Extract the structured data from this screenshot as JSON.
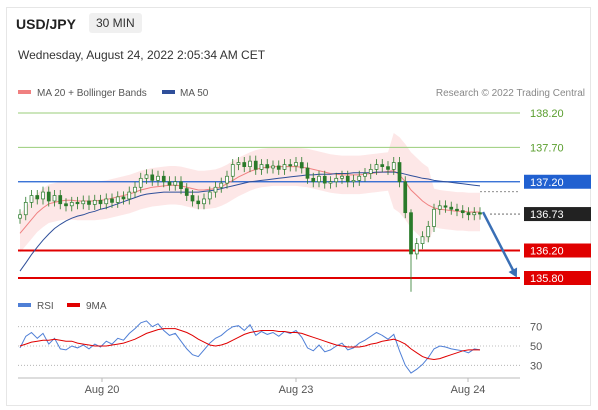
{
  "header": {
    "pair": "USD/JPY",
    "timeframe": "30 MIN",
    "datetime": "Wednesday, August 24, 2022 2:05:34 AM CET"
  },
  "legend": {
    "ma20_label": "MA 20 + Bollinger Bands",
    "ma50_label": "MA 50",
    "copyright": "Research © 2022 Trading Central",
    "rsi_label": "RSI",
    "ma9_label": "9MA"
  },
  "colors": {
    "ma20": "#f08080",
    "bollinger_fill": "#fde3e3",
    "ma50": "#2f4f9a",
    "support": "#e00000",
    "resistance": "#9acd7a",
    "pivot": "#2060d0",
    "last_price": "#222222",
    "arrow": "#3a6fb5",
    "candle": "#2a7a2a",
    "rsi": "#4f7fd6"
  },
  "chart_data": [
    {
      "type": "candlestick",
      "title": "USD/JPY 30 MIN",
      "x_tick_labels": [
        "Aug 20",
        "Aug 23",
        "Aug 24"
      ],
      "ylim": [
        135.58,
        138.36
      ],
      "last_price": 136.73,
      "levels": [
        {
          "value": 138.2,
          "label": "138.20",
          "kind": "resistance"
        },
        {
          "value": 137.7,
          "label": "137.70",
          "kind": "resistance"
        },
        {
          "value": 137.2,
          "label": "137.20",
          "kind": "pivot"
        },
        {
          "value": 136.2,
          "label": "136.20",
          "kind": "support"
        },
        {
          "value": 135.8,
          "label": "135.80",
          "kind": "support"
        }
      ],
      "close": [
        136.72,
        136.9,
        137.0,
        136.95,
        137.05,
        136.92,
        137.0,
        136.88,
        136.85,
        136.9,
        136.88,
        136.92,
        136.87,
        136.93,
        136.88,
        136.95,
        136.9,
        136.98,
        136.95,
        137.05,
        137.12,
        137.25,
        137.3,
        137.22,
        137.28,
        137.2,
        137.15,
        137.2,
        137.1,
        137.0,
        136.92,
        136.88,
        136.95,
        137.05,
        137.12,
        137.18,
        137.28,
        137.45,
        137.48,
        137.42,
        137.5,
        137.38,
        137.45,
        137.4,
        137.43,
        137.38,
        137.45,
        137.43,
        137.48,
        137.4,
        137.25,
        137.2,
        137.28,
        137.18,
        137.2,
        137.25,
        137.28,
        137.2,
        137.22,
        137.28,
        137.32,
        137.38,
        137.45,
        137.42,
        137.38,
        137.48,
        137.2,
        136.75,
        136.15,
        136.3,
        136.4,
        136.55,
        136.8,
        136.85,
        136.83,
        136.8,
        136.78,
        136.75,
        136.72,
        136.75,
        136.73
      ],
      "ma20": [
        136.45,
        136.55,
        136.65,
        136.75,
        136.82,
        136.88,
        136.9,
        136.92,
        136.93,
        136.93,
        136.92,
        136.92,
        136.92,
        136.92,
        136.93,
        136.94,
        136.96,
        136.98,
        137.0,
        137.02,
        137.05,
        137.08,
        137.1,
        137.12,
        137.13,
        137.14,
        137.15,
        137.15,
        137.14,
        137.12,
        137.1,
        137.08,
        137.08,
        137.09,
        137.1,
        137.13,
        137.17,
        137.22,
        137.27,
        137.31,
        137.35,
        137.38,
        137.4,
        137.41,
        137.42,
        137.42,
        137.42,
        137.42,
        137.42,
        137.41,
        137.4,
        137.38,
        137.36,
        137.34,
        137.32,
        137.31,
        137.3,
        137.3,
        137.3,
        137.3,
        137.31,
        137.32,
        137.33,
        137.34,
        137.35,
        137.36,
        137.3,
        137.2,
        137.08,
        137.0,
        136.92,
        136.86,
        136.82,
        136.8,
        136.79,
        136.78,
        136.77,
        136.77,
        136.76,
        136.76,
        136.76
      ],
      "ma50": [
        135.9,
        136.02,
        136.14,
        136.25,
        136.35,
        136.44,
        136.52,
        136.58,
        136.63,
        136.67,
        136.7,
        136.72,
        136.75,
        136.77,
        136.8,
        136.82,
        136.85,
        136.88,
        136.91,
        136.94,
        136.97,
        137.0,
        137.02,
        137.03,
        137.04,
        137.05,
        137.05,
        137.05,
        137.05,
        137.05,
        137.05,
        137.05,
        137.06,
        137.07,
        137.08,
        137.1,
        137.12,
        137.14,
        137.16,
        137.18,
        137.2,
        137.21,
        137.22,
        137.23,
        137.24,
        137.25,
        137.26,
        137.27,
        137.28,
        137.29,
        137.3,
        137.3,
        137.31,
        137.31,
        137.31,
        137.32,
        137.32,
        137.32,
        137.33,
        137.33,
        137.33,
        137.33,
        137.34,
        137.34,
        137.34,
        137.34,
        137.33,
        137.31,
        137.29,
        137.27,
        137.25,
        137.24,
        137.22,
        137.21,
        137.2,
        137.19,
        137.18,
        137.17,
        137.16,
        137.15,
        137.14
      ]
    },
    {
      "type": "line",
      "title": "RSI",
      "ylim": [
        20,
        80
      ],
      "y_tick_labels": [
        "70",
        "50",
        "30"
      ],
      "series": [
        {
          "name": "RSI",
          "values": [
            48,
            60,
            64,
            58,
            63,
            52,
            58,
            47,
            46,
            50,
            48,
            51,
            47,
            52,
            49,
            55,
            52,
            58,
            56,
            63,
            68,
            74,
            76,
            70,
            73,
            66,
            61,
            63,
            55,
            47,
            41,
            39,
            46,
            53,
            58,
            61,
            66,
            70,
            71,
            66,
            72,
            61,
            65,
            62,
            64,
            60,
            65,
            63,
            66,
            59,
            48,
            45,
            51,
            44,
            46,
            50,
            53,
            46,
            48,
            53,
            56,
            60,
            64,
            61,
            57,
            62,
            45,
            30,
            22,
            26,
            31,
            38,
            47,
            50,
            49,
            47,
            46,
            45,
            43,
            47,
            46
          ]
        },
        {
          "name": "9MA",
          "values": [
            50,
            52,
            54,
            55,
            56,
            56,
            57,
            56,
            55,
            55,
            53,
            52,
            51,
            50,
            50,
            50,
            51,
            52,
            53,
            55,
            57,
            60,
            63,
            65,
            67,
            68,
            68,
            68,
            66,
            64,
            61,
            57,
            54,
            51,
            50,
            51,
            53,
            56,
            59,
            62,
            64,
            65,
            66,
            66,
            66,
            65,
            65,
            64,
            64,
            63,
            61,
            59,
            57,
            55,
            53,
            51,
            50,
            49,
            49,
            49,
            50,
            52,
            53,
            55,
            56,
            57,
            55,
            52,
            47,
            43,
            39,
            37,
            36,
            37,
            39,
            41,
            43,
            45,
            46,
            46,
            46
          ]
        }
      ]
    }
  ]
}
